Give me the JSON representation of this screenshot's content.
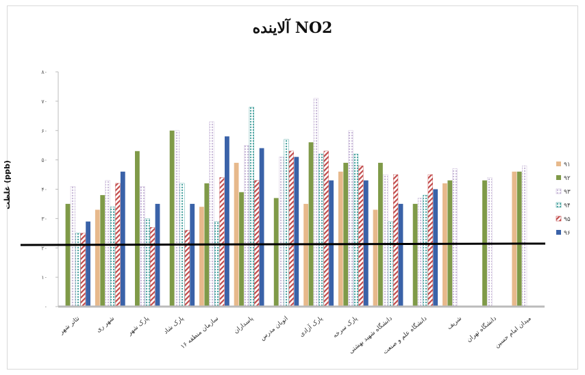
{
  "chart_data": {
    "type": "bar",
    "title": "آلاینده NO2",
    "ylabel": "غلظت (ppb)",
    "ylim": [
      0,
      80
    ],
    "y_ticks": [
      0,
      10,
      20,
      30,
      40,
      50,
      60,
      70,
      80
    ],
    "y_tick_labels": [
      "۰",
      "۱۰",
      "۲۰",
      "۳۰",
      "۴۰",
      "۵۰",
      "۶۰",
      "۷۰",
      "۸۰"
    ],
    "reference_line": 21,
    "categories": [
      "تئاتر شهر",
      "شهر ری",
      "پارک شهر",
      "پارک شاد",
      "سازمان منطقه ۱۶",
      "پاسداران",
      "اتوبان مدرس",
      "پارک آزادی",
      "پارک سرخه",
      "دانشگاه شهید بهشتی",
      "دانشگاه علم و صنعت",
      "شریف",
      "دانشگاه تهران",
      "میدان امام حسین"
    ],
    "legend": [
      "۹۱",
      "۹۲",
      "۹۳",
      "۹۴",
      "۹۵",
      "۹۶"
    ],
    "series": [
      {
        "name": "۹۱",
        "color": "#e7b98c",
        "pattern": "solid",
        "values": [
          0,
          33,
          0,
          0,
          34,
          49,
          0,
          35,
          46,
          33,
          0,
          42,
          0,
          46
        ]
      },
      {
        "name": "۹۲",
        "color": "#7f9a48",
        "pattern": "solid",
        "values": [
          35,
          38,
          53,
          60,
          42,
          39,
          37,
          56,
          49,
          49,
          35,
          43,
          43,
          46
        ]
      },
      {
        "name": "۹۳",
        "color": "#c8b8d8",
        "pattern": "dots",
        "values": [
          41,
          43,
          41,
          60,
          63,
          55,
          51,
          71,
          60,
          45,
          37,
          47,
          44,
          48
        ]
      },
      {
        "name": "۹۴",
        "color": "#4aa3a0",
        "pattern": "dots",
        "values": [
          25,
          34,
          30,
          42,
          29,
          68,
          57,
          52,
          52,
          29,
          38,
          0,
          0,
          0
        ]
      },
      {
        "name": "۹۵",
        "color": "#c24b4b",
        "pattern": "hatch",
        "values": [
          25,
          42,
          27,
          26,
          44,
          43,
          53,
          53,
          48,
          45,
          45,
          0,
          0,
          0
        ]
      },
      {
        "name": "۹۶",
        "color": "#3a62a8",
        "pattern": "solid",
        "values": [
          29,
          46,
          35,
          35,
          58,
          54,
          51,
          43,
          43,
          35,
          40,
          0,
          0,
          0
        ]
      }
    ]
  }
}
